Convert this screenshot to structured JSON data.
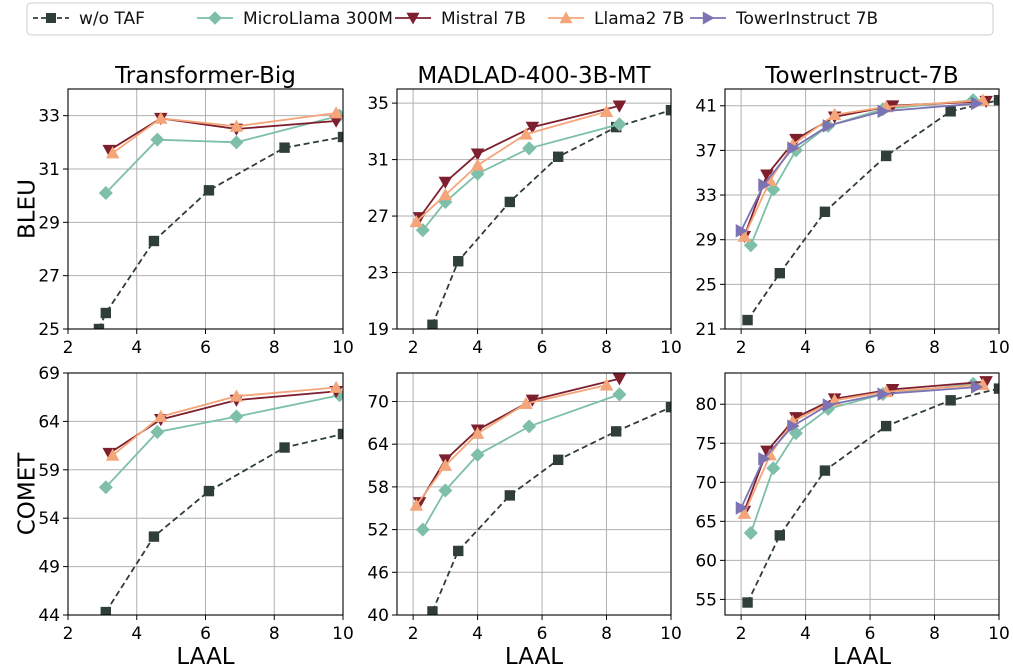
{
  "legend": {
    "entries": [
      {
        "name": "w/o TAF",
        "color": "#2f3e3a",
        "marker": "square",
        "dash": true
      },
      {
        "name": "MicroLlama 300M",
        "color": "#7dbfa9",
        "marker": "diamond",
        "dash": false
      },
      {
        "name": "Mistral 7B",
        "color": "#7e1f2e",
        "marker": "triangle-down",
        "dash": false
      },
      {
        "name": "Llama2 7B",
        "color": "#f4a57a",
        "marker": "triangle-up",
        "dash": false
      },
      {
        "name": "TowerInstruct 7B",
        "color": "#7b73b3",
        "marker": "triangle-right",
        "dash": false
      }
    ]
  },
  "row_labels": [
    "BLEU",
    "COMET"
  ],
  "xlabel": "LAAL",
  "chart_data": [
    {
      "type": "line",
      "title": "Transformer-Big",
      "ylabel": "BLEU",
      "xlabel": "",
      "xlim": [
        2,
        10
      ],
      "ylim": [
        25,
        34
      ],
      "xticks": [
        2,
        4,
        6,
        8,
        10
      ],
      "yticks": [
        25,
        27,
        29,
        31,
        33
      ],
      "series": [
        {
          "name": "w/o TAF",
          "x": [
            2.9,
            3.1,
            4.5,
            6.1,
            8.3,
            10.0
          ],
          "y": [
            25.0,
            25.6,
            28.3,
            30.2,
            31.8,
            32.2
          ]
        },
        {
          "name": "MicroLlama 300M",
          "x": [
            3.1,
            4.6,
            6.9,
            9.9
          ],
          "y": [
            30.1,
            32.1,
            32.0,
            33.0
          ]
        },
        {
          "name": "Mistral 7B",
          "x": [
            3.2,
            4.7,
            6.9,
            9.8
          ],
          "y": [
            31.7,
            32.9,
            32.5,
            32.8
          ]
        },
        {
          "name": "Llama2 7B",
          "x": [
            3.3,
            4.7,
            6.9,
            9.8
          ],
          "y": [
            31.6,
            32.9,
            32.6,
            33.1
          ]
        }
      ]
    },
    {
      "type": "line",
      "title": "MADLAD-400-3B-MT",
      "ylabel": "",
      "xlabel": "",
      "xlim": [
        1.5,
        10
      ],
      "ylim": [
        19,
        36
      ],
      "xticks": [
        2,
        4,
        6,
        8,
        10
      ],
      "yticks": [
        19,
        23,
        27,
        31,
        35
      ],
      "series": [
        {
          "name": "w/o TAF",
          "x": [
            2.6,
            3.4,
            5.0,
            6.5,
            8.3,
            10.0
          ],
          "y": [
            19.3,
            23.8,
            28.0,
            31.2,
            33.3,
            34.5
          ]
        },
        {
          "name": "MicroLlama 300M",
          "x": [
            2.3,
            3.0,
            4.0,
            5.6,
            8.4
          ],
          "y": [
            26.0,
            28.0,
            30.0,
            31.8,
            33.5
          ]
        },
        {
          "name": "Mistral 7B",
          "x": [
            2.2,
            3.0,
            4.0,
            5.7,
            8.4
          ],
          "y": [
            26.9,
            29.4,
            31.4,
            33.3,
            34.8
          ]
        },
        {
          "name": "Llama2 7B",
          "x": [
            2.1,
            3.0,
            4.0,
            5.5,
            8.0
          ],
          "y": [
            26.6,
            28.5,
            30.6,
            32.8,
            34.4
          ]
        }
      ]
    },
    {
      "type": "line",
      "title": "TowerInstruct-7B",
      "ylabel": "",
      "xlabel": "",
      "xlim": [
        1.5,
        10
      ],
      "ylim": [
        21,
        42.5
      ],
      "xticks": [
        2,
        4,
        6,
        8,
        10
      ],
      "yticks": [
        21,
        25,
        29,
        33,
        37,
        41
      ],
      "series": [
        {
          "name": "w/o TAF",
          "x": [
            2.2,
            3.2,
            4.6,
            6.5,
            8.5,
            10.0
          ],
          "y": [
            21.8,
            26.0,
            31.5,
            36.5,
            40.5,
            41.5
          ]
        },
        {
          "name": "MicroLlama 300M",
          "x": [
            2.3,
            3.0,
            3.7,
            4.7,
            6.4,
            9.2
          ],
          "y": [
            28.5,
            33.5,
            37.0,
            39.2,
            40.7,
            41.5
          ]
        },
        {
          "name": "Mistral 7B",
          "x": [
            2.1,
            2.8,
            3.7,
            4.9,
            6.7,
            9.6
          ],
          "y": [
            29.3,
            34.8,
            38.0,
            40.0,
            41.0,
            41.4
          ]
        },
        {
          "name": "Llama2 7B",
          "x": [
            2.1,
            2.9,
            3.6,
            4.9,
            6.5,
            9.5
          ],
          "y": [
            29.3,
            34.3,
            37.5,
            40.2,
            40.9,
            41.5
          ]
        },
        {
          "name": "TowerInstruct 7B",
          "x": [
            2.0,
            2.7,
            3.6,
            4.7,
            6.4,
            9.3
          ],
          "y": [
            29.8,
            33.9,
            37.2,
            39.2,
            40.5,
            41.2
          ]
        }
      ]
    },
    {
      "type": "line",
      "title": "",
      "ylabel": "COMET",
      "xlabel": "LAAL",
      "xlim": [
        2,
        10
      ],
      "ylim": [
        44,
        69
      ],
      "xticks": [
        2,
        4,
        6,
        8,
        10
      ],
      "yticks": [
        44,
        49,
        54,
        59,
        64,
        69
      ],
      "series": [
        {
          "name": "w/o TAF",
          "x": [
            3.1,
            4.5,
            6.1,
            8.3,
            10.0
          ],
          "y": [
            44.3,
            52.1,
            56.8,
            61.3,
            62.7
          ]
        },
        {
          "name": "MicroLlama 300M",
          "x": [
            3.1,
            4.6,
            6.9,
            9.9
          ],
          "y": [
            57.2,
            62.9,
            64.5,
            66.7
          ]
        },
        {
          "name": "Mistral 7B",
          "x": [
            3.2,
            4.7,
            6.9,
            9.8
          ],
          "y": [
            60.7,
            64.2,
            66.2,
            67.1
          ]
        },
        {
          "name": "Llama2 7B",
          "x": [
            3.3,
            4.7,
            6.9,
            9.8
          ],
          "y": [
            60.5,
            64.5,
            66.6,
            67.5
          ]
        }
      ]
    },
    {
      "type": "line",
      "title": "",
      "ylabel": "",
      "xlabel": "LAAL",
      "xlim": [
        1.5,
        10
      ],
      "ylim": [
        40,
        74
      ],
      "xticks": [
        2,
        4,
        6,
        8,
        10
      ],
      "yticks": [
        40,
        46,
        52,
        58,
        64,
        70
      ],
      "series": [
        {
          "name": "w/o TAF",
          "x": [
            2.6,
            3.4,
            5.0,
            6.5,
            8.3,
            10.0
          ],
          "y": [
            40.5,
            49.0,
            56.8,
            61.8,
            65.8,
            69.2
          ]
        },
        {
          "name": "MicroLlama 300M",
          "x": [
            2.3,
            3.0,
            4.0,
            5.6,
            8.4
          ],
          "y": [
            52.0,
            57.5,
            62.5,
            66.5,
            71.0
          ]
        },
        {
          "name": "Mistral 7B",
          "x": [
            2.2,
            3.0,
            4.0,
            5.7,
            8.4
          ],
          "y": [
            55.8,
            61.8,
            66.0,
            70.2,
            73.2
          ]
        },
        {
          "name": "Llama2 7B",
          "x": [
            2.1,
            3.0,
            4.0,
            5.5,
            8.0
          ],
          "y": [
            55.4,
            61.0,
            65.5,
            69.7,
            72.3
          ]
        }
      ]
    },
    {
      "type": "line",
      "title": "",
      "ylabel": "",
      "xlabel": "LAAL",
      "xlim": [
        1.5,
        10
      ],
      "ylim": [
        53,
        84
      ],
      "xticks": [
        2,
        4,
        6,
        8,
        10
      ],
      "yticks": [
        55,
        60,
        65,
        70,
        75,
        80
      ],
      "series": [
        {
          "name": "w/o TAF",
          "x": [
            2.2,
            3.2,
            4.6,
            6.5,
            8.5,
            10.0
          ],
          "y": [
            54.6,
            63.2,
            71.5,
            77.2,
            80.5,
            82.0
          ]
        },
        {
          "name": "MicroLlama 300M",
          "x": [
            2.3,
            3.0,
            3.7,
            4.7,
            6.4,
            9.2
          ],
          "y": [
            63.5,
            71.8,
            76.3,
            79.4,
            81.3,
            82.6
          ]
        },
        {
          "name": "Mistral 7B",
          "x": [
            2.1,
            2.8,
            3.7,
            4.9,
            6.7,
            9.6
          ],
          "y": [
            66.3,
            74.0,
            78.3,
            80.7,
            81.9,
            82.9
          ]
        },
        {
          "name": "Llama2 7B",
          "x": [
            2.1,
            2.9,
            3.6,
            4.9,
            6.5,
            9.5
          ],
          "y": [
            66.0,
            73.5,
            77.8,
            80.5,
            81.6,
            82.5
          ]
        },
        {
          "name": "TowerInstruct 7B",
          "x": [
            2.0,
            2.7,
            3.6,
            4.7,
            6.4,
            9.3
          ],
          "y": [
            66.7,
            73.0,
            77.2,
            79.9,
            81.3,
            82.2
          ]
        }
      ]
    }
  ]
}
